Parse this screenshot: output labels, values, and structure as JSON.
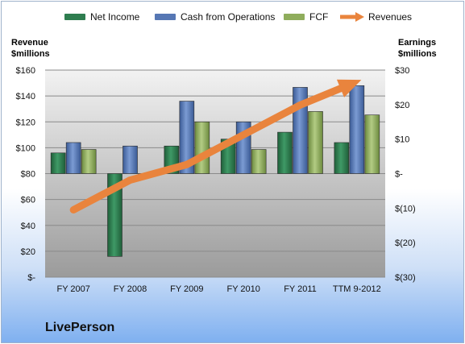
{
  "chart_data": {
    "type": "bar",
    "company": "LivePerson",
    "categories": [
      "FY 2007",
      "FY 2008",
      "FY 2009",
      "FY 2010",
      "FY 2011",
      "TTM 9-2012"
    ],
    "series": [
      {
        "name": "Net Income",
        "axis": "right",
        "color": "#2e7d4f",
        "values": [
          6,
          -24,
          8,
          10,
          12,
          9
        ]
      },
      {
        "name": "Cash from Operations",
        "axis": "right",
        "color": "#5677b4",
        "values": [
          9,
          8,
          21,
          15,
          25,
          25.5
        ]
      },
      {
        "name": "FCF",
        "axis": "right",
        "color": "#8fad5c",
        "values": [
          7,
          -0.5,
          15,
          7,
          18,
          17
        ]
      },
      {
        "name": "Revenues",
        "axis": "left",
        "type": "arrow",
        "color": "#e9843d",
        "values": [
          52,
          75,
          87,
          110,
          133,
          151
        ]
      }
    ],
    "left_axis": {
      "label_line1": "Revenue",
      "label_line2": "$millions",
      "min": 0,
      "max": 160,
      "step": 20,
      "tick_labels": [
        "$-",
        "$20",
        "$40",
        "$60",
        "$80",
        "$100",
        "$120",
        "$140",
        "$160"
      ]
    },
    "right_axis": {
      "label_line1": "Earnings",
      "label_line2": "$millions",
      "min": -30,
      "max": 30,
      "step": 10,
      "tick_labels": [
        "$(30)",
        "$(20)",
        "$(10)",
        "$-",
        "$10",
        "$20",
        "$30"
      ]
    },
    "legend_position": "top"
  }
}
